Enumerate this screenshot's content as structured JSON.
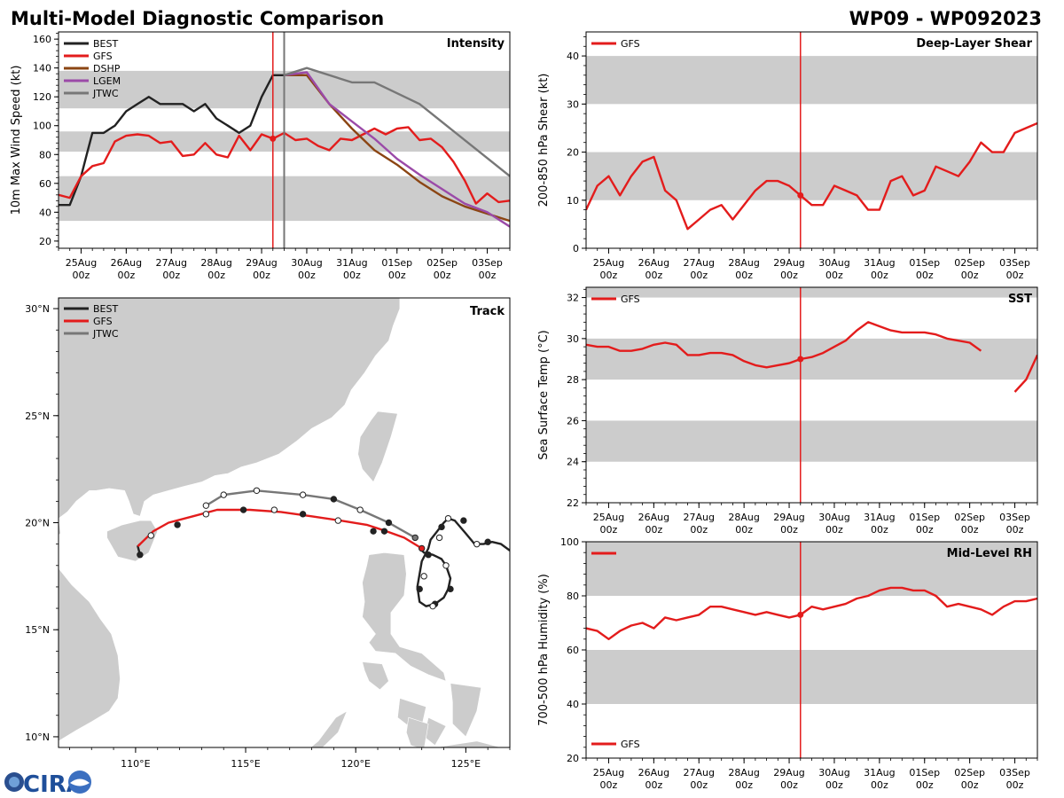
{
  "header": {
    "left_title": "Multi-Model Diagnostic Comparison",
    "right_title": "WP09 - WP092023"
  },
  "colors": {
    "BEST": "#222222",
    "GFS": "#e31c1c",
    "DSHP": "#8b4513",
    "LGEM": "#9b4aa8",
    "JTWC": "#777777",
    "band": "#cccccc",
    "land": "#cccccc",
    "border": "#ffffff",
    "init_line": "#e31c1c",
    "jtwc_line": "#777777"
  },
  "time_axis": {
    "tick_labels": [
      "25Aug\n00z",
      "26Aug\n00z",
      "27Aug\n00z",
      "28Aug\n00z",
      "29Aug\n00z",
      "30Aug\n00z",
      "31Aug\n00z",
      "01Sep\n00z",
      "02Sep\n00z",
      "03Sep\n00z"
    ],
    "tick_days": [
      1,
      2,
      3,
      4,
      5,
      6,
      7,
      8,
      9,
      10
    ],
    "range_days": [
      0.5,
      10.5
    ],
    "init_day": 5.25
  },
  "chart_data": [
    {
      "id": "intensity",
      "type": "line",
      "title": "Intensity",
      "ylabel": "10m Max Wind Speed (kt)",
      "ylim": [
        15,
        165
      ],
      "yticks": [
        20,
        40,
        60,
        80,
        100,
        120,
        140,
        160
      ],
      "bands": [
        [
          112,
          138
        ],
        [
          82,
          96
        ],
        [
          34,
          65
        ]
      ],
      "init_day": 5.25,
      "jtwc_day": 5.5,
      "legend": [
        "BEST",
        "GFS",
        "DSHP",
        "LGEM",
        "JTWC"
      ],
      "series": [
        {
          "name": "BEST",
          "x": [
            0.5,
            0.75,
            0.875,
            1.0,
            1.125,
            1.25,
            1.5,
            1.75,
            2.0,
            2.25,
            2.5,
            2.75,
            3.0,
            3.25,
            3.5,
            3.75,
            4.0,
            4.25,
            4.5,
            4.75,
            5.0,
            5.25,
            5.5
          ],
          "y": [
            45,
            45,
            55,
            65,
            80,
            95,
            95,
            100,
            110,
            115,
            120,
            115,
            115,
            115,
            110,
            115,
            105,
            100,
            95,
            100,
            120,
            135,
            135
          ]
        },
        {
          "name": "GFS",
          "x": [
            0.5,
            0.75,
            1.0,
            1.25,
            1.5,
            1.75,
            2.0,
            2.25,
            2.5,
            2.75,
            3.0,
            3.25,
            3.5,
            3.75,
            4.0,
            4.25,
            4.5,
            4.75,
            5.0,
            5.25,
            5.5,
            5.75,
            6.0,
            6.25,
            6.5,
            6.75,
            7.0,
            7.25,
            7.5,
            7.75,
            8.0,
            8.25,
            8.5,
            8.75,
            9.0,
            9.25,
            9.5,
            9.75,
            10.0,
            10.25,
            10.5
          ],
          "y": [
            52,
            50,
            65,
            72,
            74,
            89,
            93,
            94,
            93,
            88,
            89,
            79,
            80,
            88,
            80,
            78,
            93,
            83,
            94,
            91,
            95,
            90,
            91,
            86,
            83,
            91,
            90,
            94,
            98,
            94,
            98,
            99,
            90,
            91,
            85,
            75,
            62,
            46,
            53,
            47,
            48
          ]
        },
        {
          "name": "DSHP",
          "x": [
            5.5,
            6.0,
            6.5,
            7.0,
            7.5,
            8.0,
            8.5,
            9.0,
            9.5,
            10.0,
            10.5
          ],
          "y": [
            135,
            135,
            115,
            98,
            83,
            73,
            61,
            51,
            44,
            39,
            34
          ]
        },
        {
          "name": "LGEM",
          "x": [
            5.5,
            6.0,
            6.5,
            7.0,
            7.5,
            8.0,
            8.5,
            9.0,
            9.5,
            10.0,
            10.5
          ],
          "y": [
            135,
            137,
            115,
            103,
            91,
            77,
            66,
            56,
            46,
            40,
            30
          ]
        },
        {
          "name": "JTWC",
          "x": [
            5.5,
            6.0,
            7.0,
            7.5,
            8.5,
            10.5
          ],
          "y": [
            135,
            140,
            130,
            130,
            115,
            65
          ]
        }
      ]
    },
    {
      "id": "shear",
      "type": "line",
      "title": "Deep-Layer Shear",
      "ylabel": "200-850 hPa Shear (kt)",
      "ylim": [
        0,
        45
      ],
      "yticks": [
        0,
        10,
        20,
        30,
        40
      ],
      "bands": [
        [
          30,
          40
        ],
        [
          10,
          20
        ]
      ],
      "init_day": 5.25,
      "legend": [
        "GFS"
      ],
      "series": [
        {
          "name": "GFS",
          "x": [
            0.5,
            0.75,
            1.0,
            1.25,
            1.5,
            1.75,
            2.0,
            2.25,
            2.5,
            2.75,
            3.0,
            3.25,
            3.5,
            3.75,
            4.0,
            4.25,
            4.5,
            4.75,
            5.0,
            5.25,
            5.5,
            5.75,
            6.0,
            6.25,
            6.5,
            6.75,
            7.0,
            7.25,
            7.5,
            7.75,
            8.0,
            8.25,
            8.5,
            8.75,
            9.0,
            9.25,
            9.5,
            9.75,
            10.0,
            10.25,
            10.5
          ],
          "y": [
            8,
            13,
            15,
            11,
            15,
            18,
            19,
            12,
            10,
            4,
            6,
            8,
            9,
            6,
            9,
            12,
            14,
            14,
            13,
            11,
            9,
            9,
            13,
            12,
            11,
            8,
            8,
            14,
            15,
            11,
            12,
            17,
            16,
            15,
            18,
            22,
            20,
            20,
            24,
            25,
            26
          ]
        }
      ]
    },
    {
      "id": "sst",
      "type": "line",
      "title": "SST",
      "ylabel": "Sea Surface Temp (°C)",
      "ylim": [
        22,
        32.5
      ],
      "yticks": [
        22,
        24,
        26,
        28,
        30,
        32
      ],
      "bands": [
        [
          32,
          32.5
        ],
        [
          28,
          30
        ],
        [
          24,
          26
        ]
      ],
      "init_day": 5.25,
      "legend": [
        "GFS"
      ],
      "series": [
        {
          "name": "GFS",
          "x": [
            0.5,
            0.75,
            1.0,
            1.25,
            1.5,
            1.75,
            2.0,
            2.25,
            2.5,
            2.75,
            3.0,
            3.25,
            3.5,
            3.75,
            4.0,
            4.25,
            4.5,
            4.75,
            5.0,
            5.25,
            5.5,
            5.75,
            6.0,
            6.25,
            6.5,
            6.75,
            7.0,
            7.25,
            7.5,
            7.75,
            8.0,
            8.25,
            8.5,
            8.75,
            9.0,
            9.25
          ],
          "y": [
            29.7,
            29.6,
            29.6,
            29.4,
            29.4,
            29.5,
            29.7,
            29.8,
            29.7,
            29.2,
            29.2,
            29.3,
            29.3,
            29.2,
            28.9,
            28.7,
            28.6,
            28.7,
            28.8,
            29.0,
            29.1,
            29.3,
            29.6,
            29.9,
            30.4,
            30.8,
            30.6,
            30.4,
            30.3,
            30.3,
            30.3,
            30.2,
            30.0,
            29.9,
            29.8,
            29.4
          ]
        },
        {
          "name": "GFS",
          "x": [
            10.0,
            10.25,
            10.5
          ],
          "y": [
            27.4,
            28.0,
            29.2
          ]
        }
      ]
    },
    {
      "id": "rh",
      "type": "line",
      "title": "Mid-Level RH",
      "ylabel": "700-500 hPa Humidity (%)",
      "ylim": [
        20,
        100
      ],
      "yticks": [
        20,
        40,
        60,
        80,
        100
      ],
      "bands": [
        [
          80,
          100
        ],
        [
          40,
          60
        ]
      ],
      "init_day": 5.25,
      "legend": [
        "GFS"
      ],
      "series": [
        {
          "name": "GFS",
          "x": [
            0.5,
            0.75,
            1.0,
            1.25,
            1.5,
            1.75,
            2.0,
            2.25,
            2.5,
            2.75,
            3.0,
            3.25,
            3.5,
            3.75,
            4.0,
            4.25,
            4.5,
            4.75,
            5.0,
            5.25,
            5.5,
            5.75,
            6.0,
            6.25,
            6.5,
            6.75,
            7.0,
            7.25,
            7.5,
            7.75,
            8.0,
            8.25,
            8.5,
            8.75,
            9.0,
            9.25,
            9.5,
            9.75,
            10.0,
            10.25,
            10.5
          ],
          "y": [
            68,
            67,
            64,
            67,
            69,
            70,
            68,
            72,
            71,
            72,
            73,
            76,
            76,
            75,
            74,
            73,
            74,
            73,
            72,
            73,
            76,
            75,
            76,
            77,
            79,
            80,
            82,
            83,
            83,
            82,
            82,
            80,
            76,
            77,
            76,
            75,
            73,
            76,
            78,
            78,
            79
          ]
        }
      ]
    },
    {
      "id": "track",
      "type": "scatter",
      "title": "Track",
      "xlim": [
        106.5,
        127.0
      ],
      "ylim": [
        9.5,
        30.5
      ],
      "xticks": [
        110,
        115,
        120,
        125
      ],
      "xtick_labels": [
        "110°E",
        "115°E",
        "120°E",
        "125°E"
      ],
      "yticks": [
        10,
        15,
        20,
        25,
        30
      ],
      "ytick_labels": [
        "10°N",
        "15°N",
        "20°N",
        "25°N",
        "30°N"
      ],
      "legend": [
        "BEST",
        "GFS",
        "JTWC"
      ],
      "series": [
        {
          "name": "BEST",
          "lon": [
            127.0,
            126.6,
            126.2,
            125.8,
            125.4,
            125.0,
            124.5,
            124.2,
            124.0,
            123.7,
            123.4,
            123.3,
            123.0,
            122.8,
            122.9,
            123.2,
            123.6,
            124.0,
            124.2,
            124.3,
            124.1,
            123.9,
            123.7,
            123.5,
            123.1,
            122.9
          ],
          "lat": [
            18.7,
            19.0,
            19.1,
            19.0,
            19.0,
            19.5,
            20.1,
            20.2,
            20.0,
            19.6,
            19.2,
            18.8,
            18.2,
            17.0,
            16.3,
            16.1,
            16.2,
            16.5,
            16.9,
            17.4,
            18.0,
            18.3,
            18.4,
            18.5,
            18.6,
            18.8
          ],
          "marker_lon": [
            126.0,
            124.9,
            123.9,
            123.3,
            122.9,
            123.6,
            124.3
          ],
          "marker_lat": [
            19.1,
            20.1,
            19.8,
            18.5,
            16.9,
            16.2,
            16.9
          ],
          "marker_fill": [
            "black",
            "black",
            "black",
            "black",
            "black",
            "black",
            "black"
          ]
        },
        {
          "name": "BEST_end",
          "lon": [
            110.2,
            110.1,
            110.2
          ],
          "lat": [
            18.5,
            18.9,
            19.0
          ],
          "marker_lon": [
            110.2
          ],
          "marker_lat": [
            18.5
          ],
          "marker_fill": [
            "black"
          ]
        },
        {
          "name": "BEST_loop_open",
          "lon": [],
          "lat": [],
          "marker_lon": [
            124.2,
            123.8,
            123.1,
            123.5,
            124.1,
            125.5
          ],
          "marker_lat": [
            20.2,
            19.3,
            17.5,
            16.1,
            18.0,
            19.0
          ],
          "marker_fill": [
            "white",
            "white",
            "white",
            "white",
            "white",
            "white"
          ]
        },
        {
          "name": "GFS",
          "lon": [
            123.0,
            122.2,
            121.4,
            120.5,
            119.3,
            118.0,
            116.6,
            115.2,
            113.7,
            112.6,
            111.5,
            110.8,
            110.1
          ],
          "lat": [
            18.8,
            19.3,
            19.6,
            19.9,
            20.1,
            20.3,
            20.5,
            20.6,
            20.6,
            20.3,
            20.0,
            19.6,
            18.9
          ],
          "marker_lon": [
            123.0,
            121.3,
            120.8,
            119.2,
            117.6,
            116.3,
            114.9,
            113.2,
            111.9,
            110.7
          ],
          "marker_lat": [
            18.8,
            19.6,
            19.6,
            20.1,
            20.4,
            20.6,
            20.6,
            20.4,
            19.9,
            19.4
          ],
          "marker_fill": [
            "red",
            "black",
            "black",
            "white",
            "black",
            "white",
            "black",
            "white",
            "black",
            "white"
          ]
        },
        {
          "name": "JTWC",
          "lon": [
            122.7,
            122.0,
            121.5,
            120.2,
            119.0,
            117.6,
            115.5,
            114.0,
            113.2
          ],
          "lat": [
            19.3,
            19.7,
            20.0,
            20.6,
            21.1,
            21.3,
            21.5,
            21.3,
            20.8
          ],
          "marker_lon": [
            122.7,
            121.5,
            120.2,
            119.0,
            117.6,
            115.5,
            114.0,
            113.2
          ],
          "marker_lat": [
            19.3,
            20.0,
            20.6,
            21.1,
            21.3,
            21.5,
            21.3,
            20.8
          ],
          "marker_fill": [
            "gray",
            "black",
            "white",
            "black",
            "white",
            "white",
            "white",
            "white"
          ]
        }
      ]
    }
  ],
  "logo": {
    "text": "CIRA"
  }
}
